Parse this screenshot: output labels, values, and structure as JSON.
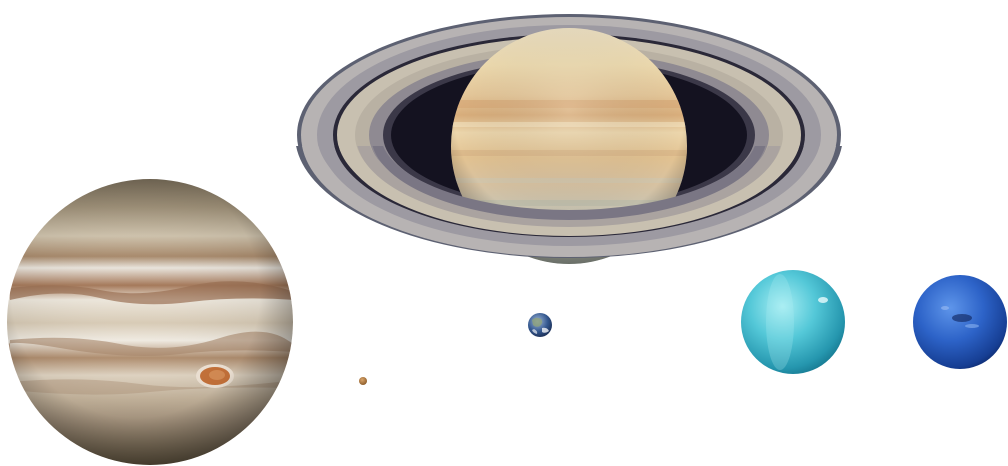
{
  "scene": {
    "background": "#ffffff",
    "objects": [
      {
        "name": "jupiter",
        "colors": {
          "base": "#c9b9a0",
          "band_dark": "#9c7a62",
          "band_light": "#e8e2d8",
          "spot": "#c9773e",
          "pole": "#7d6a55"
        }
      },
      {
        "name": "saturn",
        "colors": {
          "base": "#e6d2a6",
          "band": "#d9b27e",
          "ring_outer": "#6c6f80",
          "ring_mid": "#a8a2a0",
          "ring_inner": "#c9bda8",
          "gap": "#1a1722"
        }
      },
      {
        "name": "earth",
        "colors": {
          "ocean": "#2a4a7a",
          "land": "#8fa37a",
          "cloud": "#e9ecf2"
        }
      },
      {
        "name": "mars",
        "colors": {
          "base": "#b07a3a"
        }
      },
      {
        "name": "uranus",
        "colors": {
          "base": "#4fc9d9",
          "light": "#9de6ee",
          "dark": "#1f8fa6"
        }
      },
      {
        "name": "neptune",
        "colors": {
          "base": "#2a5fc4",
          "light": "#5a8fe4",
          "dark": "#10327a"
        }
      }
    ]
  }
}
